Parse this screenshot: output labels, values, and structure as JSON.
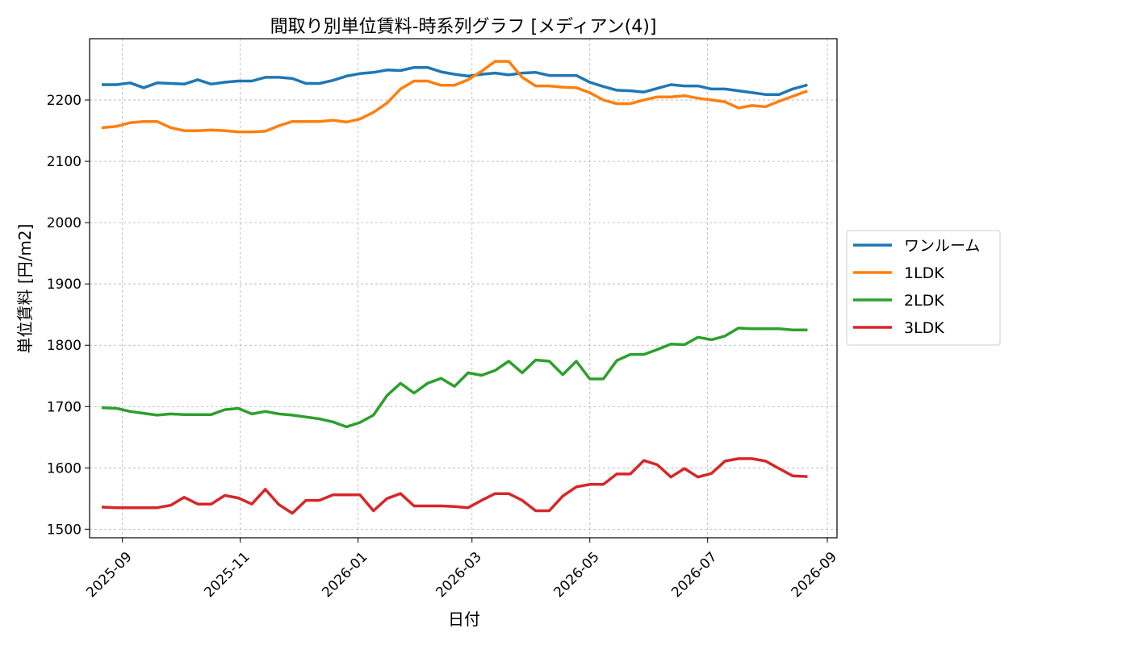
{
  "chart_data": {
    "type": "line",
    "title": "間取り別単位賃料-時系列グラフ [メディアン(4)]",
    "xlabel": "日付",
    "ylabel": "単位賃料 [円/m2]",
    "x_ticks": [
      "2025-09",
      "2025-11",
      "2026-01",
      "2026-03",
      "2026-05",
      "2026-07",
      "2026-09"
    ],
    "y_ticks": [
      1500,
      1600,
      1700,
      1800,
      1900,
      2000,
      2100,
      2200
    ],
    "xlim": [
      "2025-08-15",
      "2026-09-06"
    ],
    "ylim": [
      1486,
      2300
    ],
    "grid": true,
    "legend_position": "outside-right",
    "x": [
      "2025-08-22",
      "2025-08-29",
      "2025-09-05",
      "2025-09-12",
      "2025-09-19",
      "2025-09-26",
      "2025-10-03",
      "2025-10-10",
      "2025-10-17",
      "2025-10-24",
      "2025-10-31",
      "2025-11-07",
      "2025-11-14",
      "2025-11-21",
      "2025-11-28",
      "2025-12-05",
      "2025-12-12",
      "2025-12-19",
      "2025-12-26",
      "2026-01-02",
      "2026-01-09",
      "2026-01-16",
      "2026-01-23",
      "2026-01-30",
      "2026-02-06",
      "2026-02-13",
      "2026-02-20",
      "2026-02-27",
      "2026-03-06",
      "2026-03-13",
      "2026-03-20",
      "2026-03-27",
      "2026-04-03",
      "2026-04-10",
      "2026-04-17",
      "2026-04-24",
      "2026-05-01",
      "2026-05-08",
      "2026-05-15",
      "2026-05-22",
      "2026-05-29",
      "2026-06-05",
      "2026-06-12",
      "2026-06-19",
      "2026-06-26",
      "2026-07-03",
      "2026-07-10",
      "2026-07-17",
      "2026-07-24",
      "2026-07-31",
      "2026-08-07",
      "2026-08-14",
      "2026-08-21"
    ],
    "series": [
      {
        "name": "ワンルーム",
        "color": "#1f77b4",
        "values": [
          2225,
          2225,
          2228,
          2220,
          2228,
          2227,
          2226,
          2233,
          2226,
          2229,
          2231,
          2231,
          2237,
          2237,
          2235,
          2227,
          2227,
          2232,
          2239,
          2243,
          2245,
          2249,
          2248,
          2253,
          2253,
          2246,
          2242,
          2239,
          2242,
          2244,
          2241,
          2244,
          2245,
          2240,
          2240,
          2240,
          2229,
          2222,
          2216,
          2215,
          2213,
          2219,
          2225,
          2223,
          2223,
          2218,
          2218,
          2215,
          2212,
          2209,
          2209,
          2218,
          2224
        ]
      },
      {
        "name": "1LDK",
        "color": "#ff7f0e",
        "values": [
          2155,
          2157,
          2163,
          2165,
          2165,
          2155,
          2150,
          2150,
          2151,
          2150,
          2148,
          2148,
          2149,
          2158,
          2165,
          2165,
          2165,
          2167,
          2164,
          2169,
          2180,
          2195,
          2218,
          2231,
          2231,
          2224,
          2224,
          2233,
          2247,
          2263,
          2263,
          2237,
          2223,
          2223,
          2221,
          2220,
          2212,
          2200,
          2194,
          2194,
          2200,
          2205,
          2205,
          2207,
          2203,
          2200,
          2197,
          2187,
          2191,
          2189,
          2198,
          2206,
          2214
        ]
      },
      {
        "name": "2LDK",
        "color": "#2ca02c",
        "values": [
          1698,
          1697,
          1692,
          1689,
          1686,
          1688,
          1687,
          1687,
          1687,
          1695,
          1697,
          1688,
          1692,
          1688,
          1686,
          1683,
          1680,
          1675,
          1667,
          1674,
          1686,
          1718,
          1738,
          1722,
          1738,
          1746,
          1733,
          1755,
          1751,
          1759,
          1774,
          1755,
          1776,
          1774,
          1752,
          1774,
          1745,
          1745,
          1775,
          1785,
          1785,
          1793,
          1802,
          1801,
          1813,
          1809,
          1815,
          1828,
          1827,
          1827,
          1827,
          1825,
          1825
        ]
      },
      {
        "name": "3LDK",
        "color": "#d62728",
        "values": [
          1536,
          1535,
          1535,
          1535,
          1535,
          1539,
          1552,
          1541,
          1541,
          1555,
          1551,
          1541,
          1565,
          1540,
          1526,
          1547,
          1547,
          1556,
          1556,
          1556,
          1530,
          1550,
          1558,
          1538,
          1538,
          1538,
          1537,
          1535,
          1547,
          1558,
          1558,
          1547,
          1530,
          1530,
          1554,
          1569,
          1573,
          1573,
          1590,
          1590,
          1612,
          1605,
          1585,
          1599,
          1585,
          1591,
          1611,
          1615,
          1615,
          1611,
          1599,
          1587,
          1586
        ]
      }
    ]
  }
}
